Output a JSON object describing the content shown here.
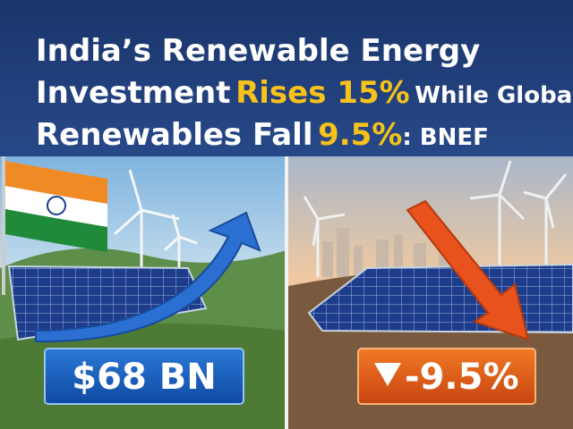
{
  "headline": {
    "line_1": "India’s Renewable Energy",
    "line_2": [
      "Investment",
      "Rises 15%",
      "While Global"
    ],
    "line_3": [
      "Renewables Fall",
      "9.5%",
      ": BNEF"
    ]
  },
  "badges": {
    "india": "$68 BN",
    "global": "-9.5%"
  }
}
